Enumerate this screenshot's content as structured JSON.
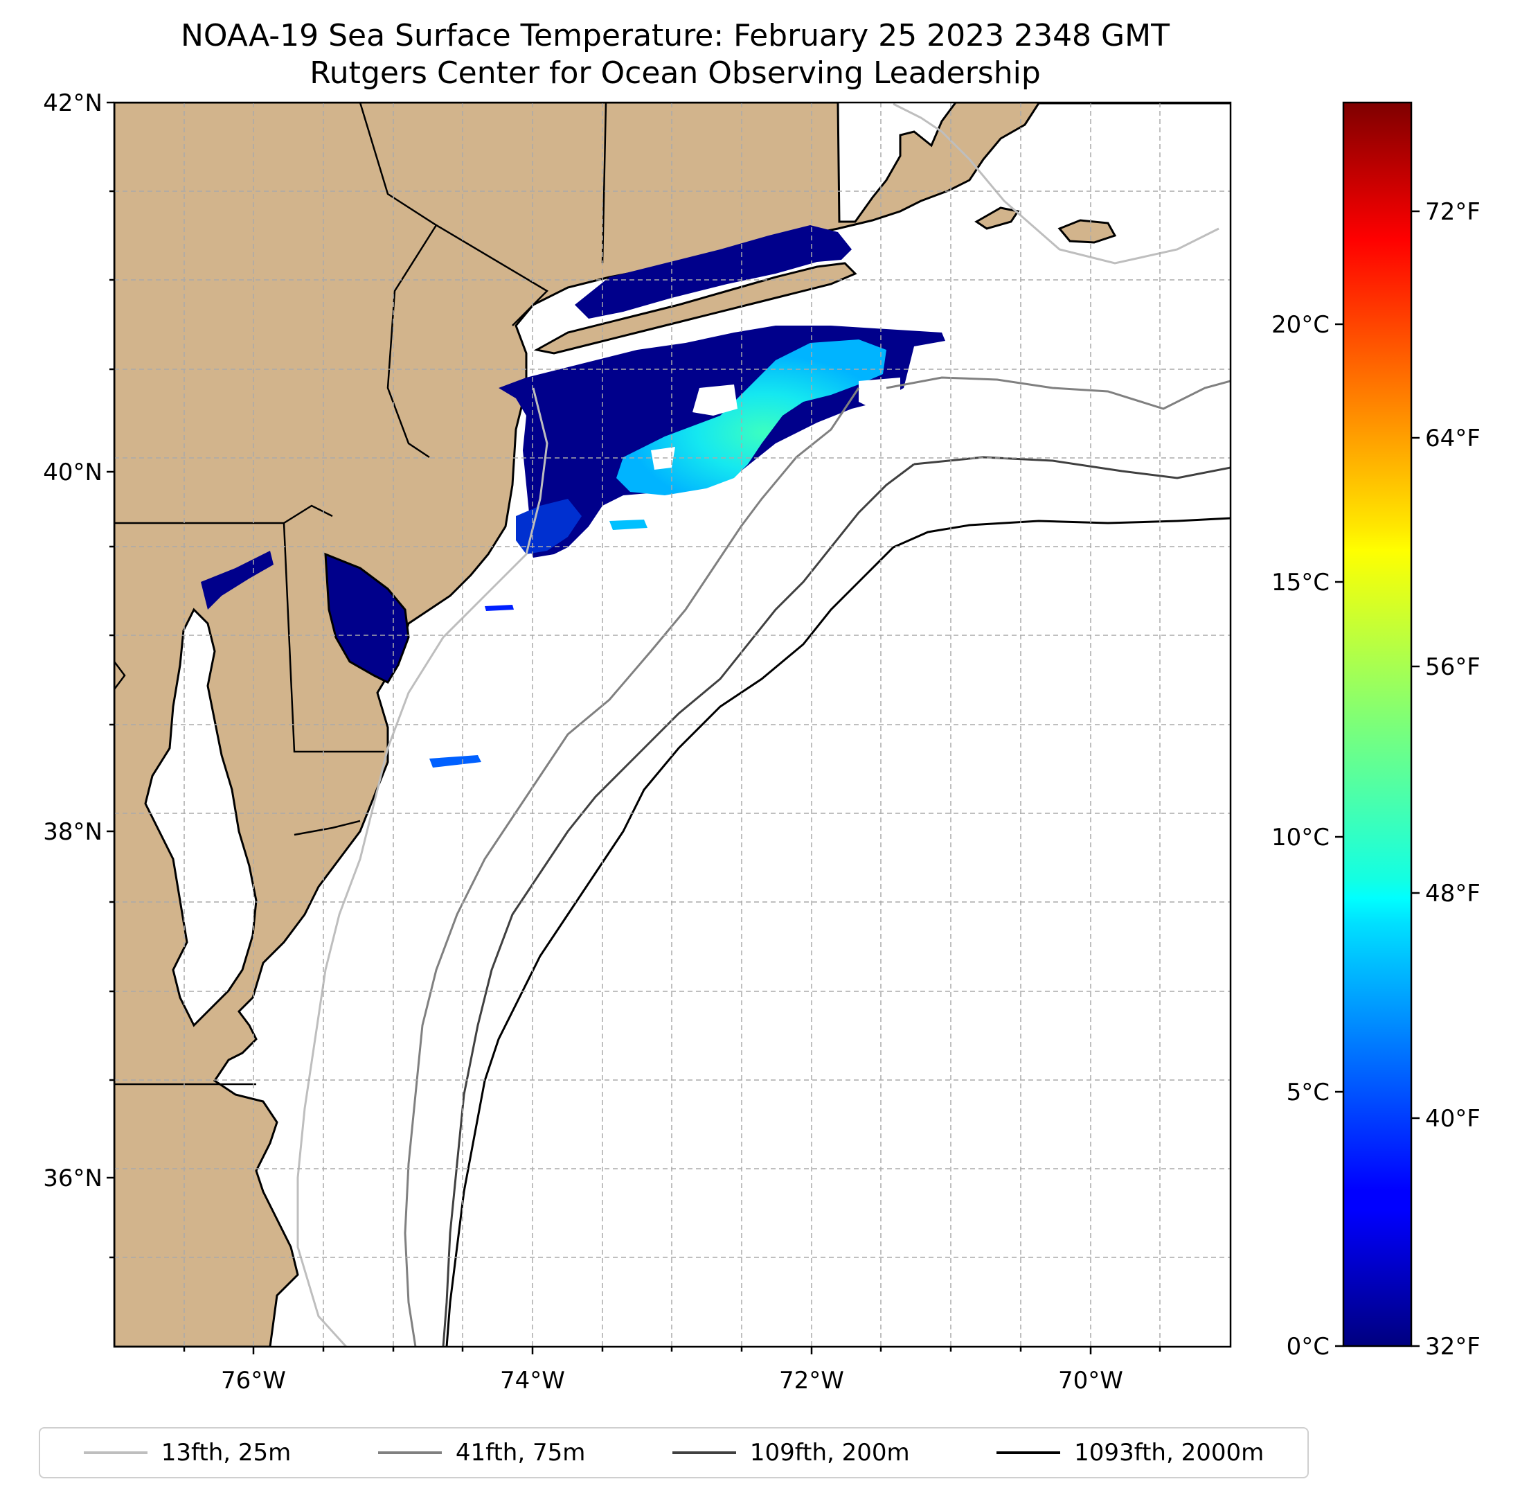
{
  "title": {
    "line1": "NOAA-19 Sea Surface Temperature: February 25 2023 2348 GMT",
    "line2": "Rutgers Center for Ocean Observing Leadership"
  },
  "map": {
    "lat_range": [
      35,
      42
    ],
    "lon_range": [
      -77,
      -69
    ],
    "lat_ticks": [
      "36°N",
      "38°N",
      "40°N",
      "42°N"
    ],
    "lon_ticks": [
      "76°W",
      "74°W",
      "72°W",
      "70°W"
    ],
    "land_color": "#d2b48c",
    "ocean_color": "#ffffff",
    "grid": true
  },
  "colorbar": {
    "colormap": "jet",
    "celsius_ticks": [
      "0°C",
      "5°C",
      "10°C",
      "15°C",
      "20°C"
    ],
    "fahrenheit_ticks": [
      "32°F",
      "40°F",
      "48°F",
      "56°F",
      "64°F",
      "72°F"
    ],
    "range_celsius": [
      0,
      24.4
    ]
  },
  "legend": {
    "items": [
      {
        "label": "13fth, 25m",
        "color": "#bebebe"
      },
      {
        "label": "41fth, 75m",
        "color": "#808080"
      },
      {
        "label": "109fth, 200m",
        "color": "#404040"
      },
      {
        "label": "1093fth, 2000m",
        "color": "#000000"
      }
    ]
  }
}
